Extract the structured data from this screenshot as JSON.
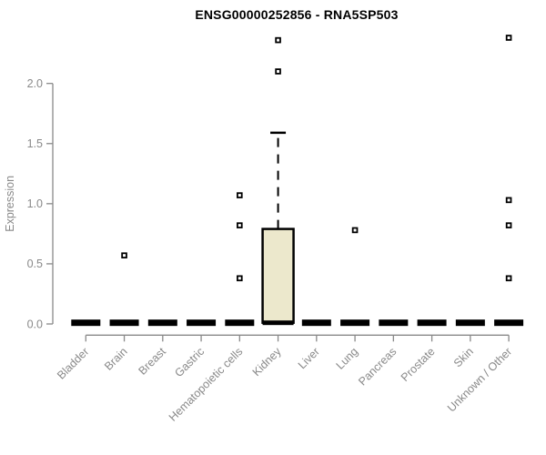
{
  "chart_data": {
    "type": "boxplot",
    "title": "ENSG00000252856 - RNA5SP503",
    "ylabel": "Expression",
    "xlabel": "",
    "ylim": [
      0,
      2.45
    ],
    "grid": false,
    "legend": "none",
    "colors": {
      "box_fill": "#ece8cc",
      "box_stroke": "#000000",
      "flat_box": "#000000",
      "axis": "#898989",
      "tick_text": "#898989",
      "title_text": "#000000",
      "outlier_fill": "#ffffff",
      "outlier_stroke": "#000000",
      "background": "#ffffff"
    },
    "y_ticks": [
      {
        "label": "0.0",
        "value": 0.0
      },
      {
        "label": "0.5",
        "value": 0.5
      },
      {
        "label": "1.0",
        "value": 1.0
      },
      {
        "label": "1.5",
        "value": 1.5
      },
      {
        "label": "2.0",
        "value": 2.0
      }
    ],
    "categories": [
      "Bladder",
      "Brain",
      "Breast",
      "Gastric",
      "Hematopoietic cells",
      "Kidney",
      "Liver",
      "Lung",
      "Pancreas",
      "Prostate",
      "Skin",
      "Unknown / Other"
    ],
    "boxes": [
      {
        "category": "Bladder",
        "q1": 0.0,
        "median": 0.01,
        "q3": 0.02,
        "whisker_low": 0.0,
        "whisker_high": 0.02,
        "outliers": []
      },
      {
        "category": "Brain",
        "q1": 0.0,
        "median": 0.01,
        "q3": 0.02,
        "whisker_low": 0.0,
        "whisker_high": 0.02,
        "outliers": [
          0.57
        ]
      },
      {
        "category": "Breast",
        "q1": 0.0,
        "median": 0.01,
        "q3": 0.02,
        "whisker_low": 0.0,
        "whisker_high": 0.02,
        "outliers": []
      },
      {
        "category": "Gastric",
        "q1": 0.0,
        "median": 0.01,
        "q3": 0.02,
        "whisker_low": 0.0,
        "whisker_high": 0.02,
        "outliers": []
      },
      {
        "category": "Hematopoietic cells",
        "q1": 0.0,
        "median": 0.01,
        "q3": 0.02,
        "whisker_low": 0.0,
        "whisker_high": 0.02,
        "outliers": [
          1.07,
          0.82,
          0.38
        ]
      },
      {
        "category": "Kidney",
        "q1": 0.01,
        "median": 0.01,
        "q3": 0.79,
        "whisker_low": 0.0,
        "whisker_high": 1.59,
        "outliers": [
          2.36,
          2.1
        ]
      },
      {
        "category": "Liver",
        "q1": 0.0,
        "median": 0.01,
        "q3": 0.02,
        "whisker_low": 0.0,
        "whisker_high": 0.02,
        "outliers": []
      },
      {
        "category": "Lung",
        "q1": 0.0,
        "median": 0.01,
        "q3": 0.02,
        "whisker_low": 0.0,
        "whisker_high": 0.02,
        "outliers": [
          0.78
        ]
      },
      {
        "category": "Pancreas",
        "q1": 0.0,
        "median": 0.01,
        "q3": 0.02,
        "whisker_low": 0.0,
        "whisker_high": 0.02,
        "outliers": []
      },
      {
        "category": "Prostate",
        "q1": 0.0,
        "median": 0.01,
        "q3": 0.02,
        "whisker_low": 0.0,
        "whisker_high": 0.02,
        "outliers": []
      },
      {
        "category": "Skin",
        "q1": 0.0,
        "median": 0.01,
        "q3": 0.02,
        "whisker_low": 0.0,
        "whisker_high": 0.02,
        "outliers": []
      },
      {
        "category": "Unknown / Other",
        "q1": 0.0,
        "median": 0.01,
        "q3": 0.02,
        "whisker_low": 0.0,
        "whisker_high": 0.02,
        "outliers": [
          2.38,
          1.03,
          0.82,
          0.38
        ]
      }
    ]
  }
}
